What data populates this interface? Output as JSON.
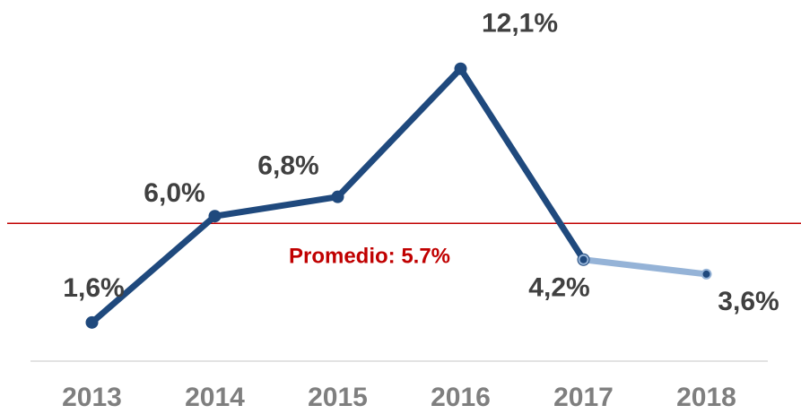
{
  "chart_data": {
    "type": "line",
    "categories": [
      "2013",
      "2014",
      "2015",
      "2016",
      "2017",
      "2018"
    ],
    "series": [
      {
        "color": "#1f497d",
        "values": [
          1.6,
          6.0,
          6.8,
          12.1,
          4.2,
          null
        ],
        "value_labels": [
          "1,6%",
          "6,0%",
          "6,8%",
          "12,1%",
          "4,2%",
          null
        ]
      },
      {
        "color": "#95b3d7",
        "values": [
          null,
          null,
          null,
          null,
          4.2,
          3.6
        ],
        "value_labels": [
          null,
          null,
          null,
          null,
          null,
          "3,6%"
        ]
      }
    ],
    "ylim": [
      0,
      13.5
    ],
    "reference_line": {
      "value": 5.7,
      "label": "Promedio: 5.7%",
      "color": "#c00000"
    }
  }
}
